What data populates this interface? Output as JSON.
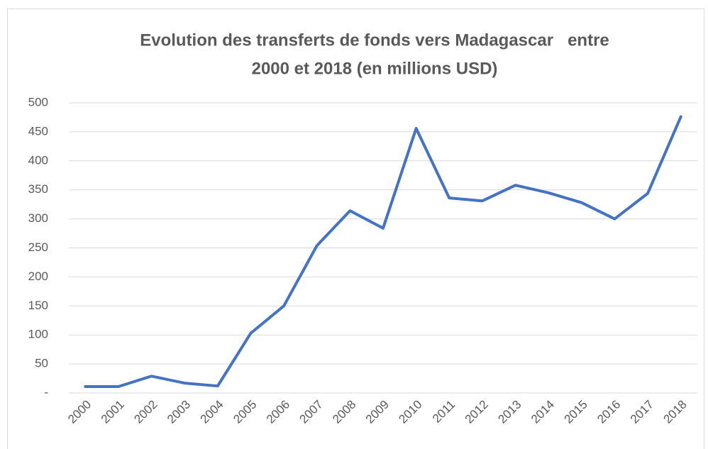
{
  "chart_data": {
    "type": "line",
    "title": [
      "Evolution des transferts de fonds vers Madagascar   entre",
      "2000 et 2018 (en millions USD)"
    ],
    "categories": [
      "2000",
      "2001",
      "2002",
      "2003",
      "2004",
      "2005",
      "2006",
      "2007",
      "2008",
      "2009",
      "2010",
      "2011",
      "2012",
      "2013",
      "2014",
      "2015",
      "2016",
      "2017",
      "2018"
    ],
    "values": [
      11,
      11,
      29,
      17,
      12,
      103,
      150,
      254,
      314,
      284,
      456,
      336,
      331,
      358,
      345,
      328,
      300,
      344,
      476
    ],
    "color": "#4472c4",
    "ylim": [
      0,
      500
    ],
    "yticks": [
      {
        "value": 0,
        "label": "-"
      },
      50,
      100,
      150,
      200,
      250,
      300,
      350,
      400,
      450,
      500
    ],
    "grid": true
  }
}
